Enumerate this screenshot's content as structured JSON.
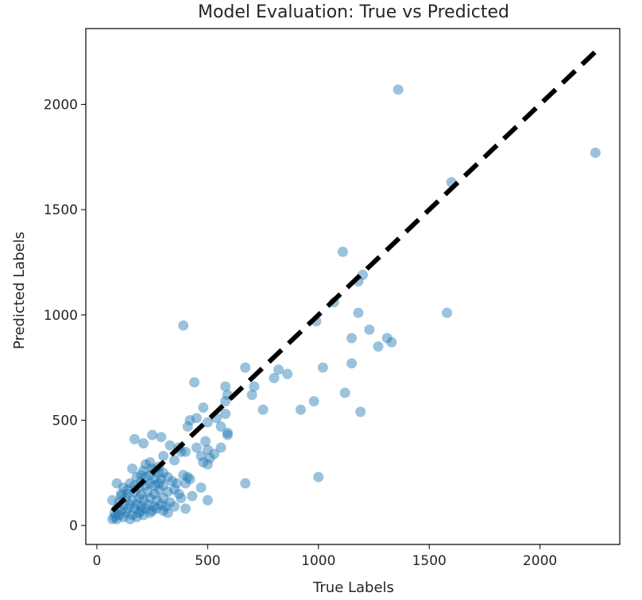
{
  "chart_data": {
    "type": "scatter",
    "title": "Model Evaluation: True vs Predicted",
    "xlabel": "True Labels",
    "ylabel": "Predicted Labels",
    "xlim": [
      -50,
      2360
    ],
    "ylim": [
      -90,
      2360
    ],
    "xticks": [
      0,
      500,
      1000,
      1500,
      2000
    ],
    "yticks": [
      0,
      500,
      1000,
      1500,
      2000
    ],
    "grid": false,
    "colors": {
      "points": "#1f77b4",
      "line": "#000000"
    },
    "reference_line": {
      "style": "dashed",
      "x": [
        70,
        2250
      ],
      "y": [
        70,
        2250
      ]
    },
    "points": [
      {
        "x": 1360,
        "y": 2070
      },
      {
        "x": 2250,
        "y": 1770
      },
      {
        "x": 1600,
        "y": 1630
      },
      {
        "x": 1110,
        "y": 1300
      },
      {
        "x": 1180,
        "y": 1160
      },
      {
        "x": 1200,
        "y": 1190
      },
      {
        "x": 1070,
        "y": 1060
      },
      {
        "x": 1180,
        "y": 1010
      },
      {
        "x": 1580,
        "y": 1010
      },
      {
        "x": 990,
        "y": 970
      },
      {
        "x": 390,
        "y": 950
      },
      {
        "x": 1230,
        "y": 930
      },
      {
        "x": 1150,
        "y": 890
      },
      {
        "x": 1310,
        "y": 890
      },
      {
        "x": 1330,
        "y": 870
      },
      {
        "x": 1270,
        "y": 850
      },
      {
        "x": 1150,
        "y": 770
      },
      {
        "x": 1020,
        "y": 750
      },
      {
        "x": 670,
        "y": 750
      },
      {
        "x": 820,
        "y": 740
      },
      {
        "x": 860,
        "y": 720
      },
      {
        "x": 800,
        "y": 700
      },
      {
        "x": 440,
        "y": 680
      },
      {
        "x": 580,
        "y": 660
      },
      {
        "x": 710,
        "y": 660
      },
      {
        "x": 1120,
        "y": 630
      },
      {
        "x": 590,
        "y": 620
      },
      {
        "x": 700,
        "y": 620
      },
      {
        "x": 580,
        "y": 590
      },
      {
        "x": 980,
        "y": 590
      },
      {
        "x": 480,
        "y": 560
      },
      {
        "x": 750,
        "y": 550
      },
      {
        "x": 920,
        "y": 550
      },
      {
        "x": 1190,
        "y": 540
      },
      {
        "x": 580,
        "y": 530
      },
      {
        "x": 450,
        "y": 510
      },
      {
        "x": 540,
        "y": 510
      },
      {
        "x": 420,
        "y": 500
      },
      {
        "x": 500,
        "y": 490
      },
      {
        "x": 560,
        "y": 470
      },
      {
        "x": 410,
        "y": 470
      },
      {
        "x": 590,
        "y": 440
      },
      {
        "x": 590,
        "y": 430
      },
      {
        "x": 250,
        "y": 430
      },
      {
        "x": 290,
        "y": 420
      },
      {
        "x": 170,
        "y": 410
      },
      {
        "x": 210,
        "y": 390
      },
      {
        "x": 490,
        "y": 400
      },
      {
        "x": 330,
        "y": 380
      },
      {
        "x": 370,
        "y": 370
      },
      {
        "x": 380,
        "y": 350
      },
      {
        "x": 400,
        "y": 350
      },
      {
        "x": 450,
        "y": 370
      },
      {
        "x": 500,
        "y": 360
      },
      {
        "x": 560,
        "y": 370
      },
      {
        "x": 530,
        "y": 340
      },
      {
        "x": 470,
        "y": 330
      },
      {
        "x": 510,
        "y": 320
      },
      {
        "x": 300,
        "y": 330
      },
      {
        "x": 350,
        "y": 310
      },
      {
        "x": 240,
        "y": 300
      },
      {
        "x": 220,
        "y": 290
      },
      {
        "x": 480,
        "y": 300
      },
      {
        "x": 500,
        "y": 290
      },
      {
        "x": 160,
        "y": 270
      },
      {
        "x": 210,
        "y": 260
      },
      {
        "x": 250,
        "y": 270
      },
      {
        "x": 280,
        "y": 250
      },
      {
        "x": 300,
        "y": 250
      },
      {
        "x": 320,
        "y": 230
      },
      {
        "x": 200,
        "y": 240
      },
      {
        "x": 180,
        "y": 230
      },
      {
        "x": 220,
        "y": 230
      },
      {
        "x": 260,
        "y": 220
      },
      {
        "x": 290,
        "y": 220
      },
      {
        "x": 340,
        "y": 210
      },
      {
        "x": 360,
        "y": 200
      },
      {
        "x": 280,
        "y": 200
      },
      {
        "x": 240,
        "y": 200
      },
      {
        "x": 200,
        "y": 210
      },
      {
        "x": 150,
        "y": 200
      },
      {
        "x": 220,
        "y": 190
      },
      {
        "x": 260,
        "y": 190
      },
      {
        "x": 300,
        "y": 190
      },
      {
        "x": 390,
        "y": 240
      },
      {
        "x": 410,
        "y": 230
      },
      {
        "x": 420,
        "y": 220
      },
      {
        "x": 400,
        "y": 200
      },
      {
        "x": 670,
        "y": 200
      },
      {
        "x": 1000,
        "y": 230
      },
      {
        "x": 120,
        "y": 180
      },
      {
        "x": 140,
        "y": 170
      },
      {
        "x": 170,
        "y": 160
      },
      {
        "x": 200,
        "y": 150
      },
      {
        "x": 230,
        "y": 160
      },
      {
        "x": 260,
        "y": 150
      },
      {
        "x": 280,
        "y": 170
      },
      {
        "x": 320,
        "y": 160
      },
      {
        "x": 350,
        "y": 170
      },
      {
        "x": 370,
        "y": 150
      },
      {
        "x": 110,
        "y": 150
      },
      {
        "x": 130,
        "y": 130
      },
      {
        "x": 160,
        "y": 120
      },
      {
        "x": 190,
        "y": 130
      },
      {
        "x": 210,
        "y": 120
      },
      {
        "x": 240,
        "y": 130
      },
      {
        "x": 270,
        "y": 120
      },
      {
        "x": 300,
        "y": 130
      },
      {
        "x": 330,
        "y": 110
      },
      {
        "x": 380,
        "y": 130
      },
      {
        "x": 430,
        "y": 140
      },
      {
        "x": 470,
        "y": 180
      },
      {
        "x": 100,
        "y": 110
      },
      {
        "x": 120,
        "y": 100
      },
      {
        "x": 150,
        "y": 100
      },
      {
        "x": 180,
        "y": 100
      },
      {
        "x": 200,
        "y": 90
      },
      {
        "x": 230,
        "y": 100
      },
      {
        "x": 260,
        "y": 90
      },
      {
        "x": 290,
        "y": 100
      },
      {
        "x": 310,
        "y": 90
      },
      {
        "x": 350,
        "y": 90
      },
      {
        "x": 500,
        "y": 120
      },
      {
        "x": 70,
        "y": 120
      },
      {
        "x": 90,
        "y": 80
      },
      {
        "x": 110,
        "y": 70
      },
      {
        "x": 140,
        "y": 80
      },
      {
        "x": 170,
        "y": 80
      },
      {
        "x": 200,
        "y": 70
      },
      {
        "x": 220,
        "y": 80
      },
      {
        "x": 250,
        "y": 70
      },
      {
        "x": 270,
        "y": 80
      },
      {
        "x": 300,
        "y": 70
      },
      {
        "x": 80,
        "y": 60
      },
      {
        "x": 100,
        "y": 50
      },
      {
        "x": 130,
        "y": 60
      },
      {
        "x": 160,
        "y": 50
      },
      {
        "x": 190,
        "y": 60
      },
      {
        "x": 80,
        "y": 40
      },
      {
        "x": 70,
        "y": 30
      },
      {
        "x": 90,
        "y": 30
      },
      {
        "x": 120,
        "y": 40
      },
      {
        "x": 150,
        "y": 30
      },
      {
        "x": 180,
        "y": 40
      },
      {
        "x": 210,
        "y": 50
      },
      {
        "x": 240,
        "y": 60
      },
      {
        "x": 320,
        "y": 60
      },
      {
        "x": 400,
        "y": 80
      },
      {
        "x": 90,
        "y": 200
      },
      {
        "x": 110,
        "y": 140
      },
      {
        "x": 140,
        "y": 150
      },
      {
        "x": 240,
        "y": 240
      },
      {
        "x": 260,
        "y": 260
      },
      {
        "x": 280,
        "y": 280
      },
      {
        "x": 190,
        "y": 180
      },
      {
        "x": 170,
        "y": 190
      }
    ]
  }
}
